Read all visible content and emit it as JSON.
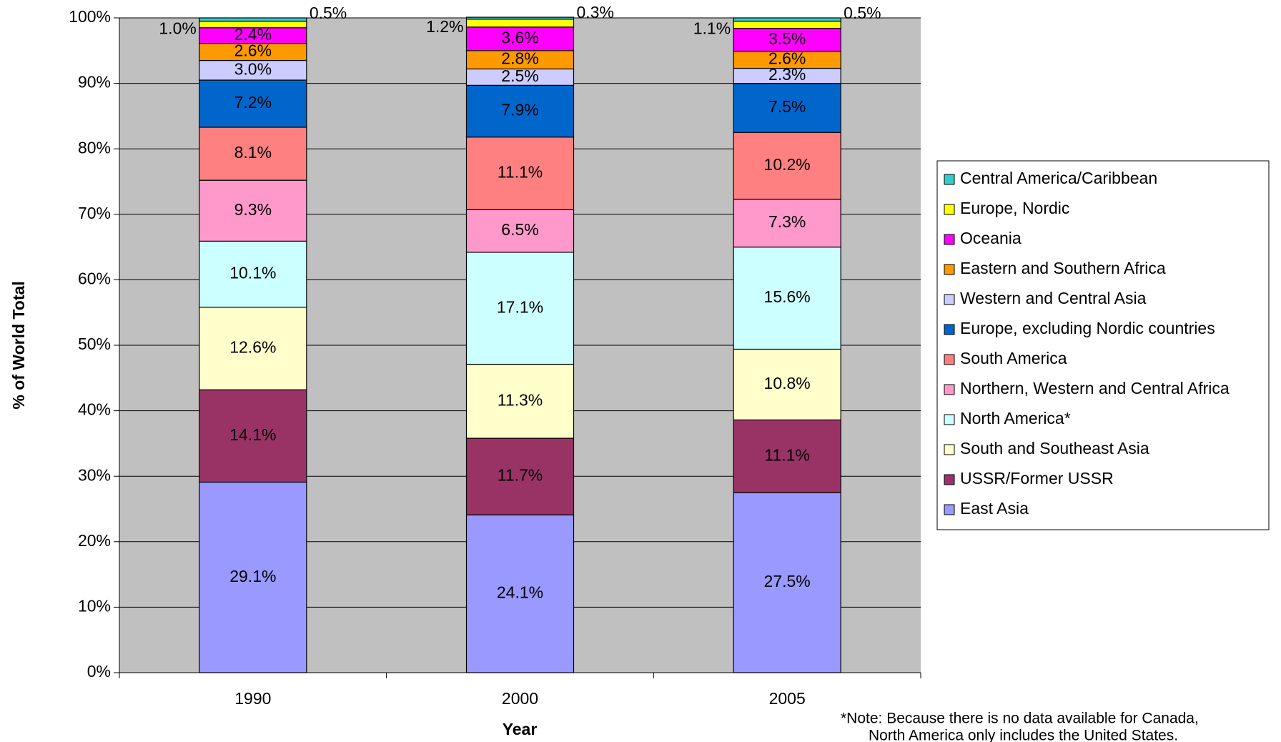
{
  "chart_data": {
    "type": "stacked_bar_100",
    "x_label": "Year",
    "y_label": "% of World Total",
    "note": "*Note:  Because there is no data available for Canada,",
    "note_line2": "North America only includes the United States.",
    "categories": [
      "1990",
      "2000",
      "2005"
    ],
    "ylim": [
      0,
      100
    ],
    "yticks": [
      {
        "value": 0,
        "label": "0%"
      },
      {
        "value": 10,
        "label": "10%"
      },
      {
        "value": 20,
        "label": "20%"
      },
      {
        "value": 30,
        "label": "30%"
      },
      {
        "value": 40,
        "label": "40%"
      },
      {
        "value": 50,
        "label": "50%"
      },
      {
        "value": 60,
        "label": "60%"
      },
      {
        "value": 70,
        "label": "70%"
      },
      {
        "value": 80,
        "label": "80%"
      },
      {
        "value": 90,
        "label": "90%"
      },
      {
        "value": 100,
        "label": "100%"
      }
    ],
    "grid": true,
    "legend_position": "right",
    "series": [
      {
        "name": "East Asia",
        "color": "#9999ff",
        "values": [
          29.1,
          24.1,
          27.5
        ],
        "value_labels": [
          "29.1%",
          "24.1%",
          "27.5%"
        ]
      },
      {
        "name": "USSR/Former USSR",
        "color": "#993366",
        "values": [
          14.1,
          11.7,
          11.1
        ],
        "value_labels": [
          "14.1%",
          "11.7%",
          "11.1%"
        ]
      },
      {
        "name": "South and Southeast Asia",
        "color": "#ffffcc",
        "values": [
          12.6,
          11.3,
          10.8
        ],
        "value_labels": [
          "12.6%",
          "11.3%",
          "10.8%"
        ]
      },
      {
        "name": "North America*",
        "color": "#ccffff",
        "values": [
          10.1,
          17.1,
          15.6
        ],
        "value_labels": [
          "10.1%",
          "17.1%",
          "15.6%"
        ]
      },
      {
        "name": "Northern, Western and Central Africa",
        "color": "#ff99cc",
        "values": [
          9.3,
          6.5,
          7.3
        ],
        "value_labels": [
          "9.3%",
          "6.5%",
          "7.3%"
        ]
      },
      {
        "name": "South America",
        "color": "#ff8080",
        "values": [
          8.1,
          11.1,
          10.2
        ],
        "value_labels": [
          "8.1%",
          "11.1%",
          "10.2%"
        ]
      },
      {
        "name": "Europe, excluding Nordic countries",
        "color": "#0066cc",
        "values": [
          7.2,
          7.9,
          7.5
        ],
        "value_labels": [
          "7.2%",
          "7.9%",
          "7.5%"
        ]
      },
      {
        "name": "Western and Central Asia",
        "color": "#ccccff",
        "values": [
          3.0,
          2.5,
          2.3
        ],
        "value_labels": [
          "3.0%",
          "2.5%",
          "2.3%"
        ]
      },
      {
        "name": "Eastern and Southern Africa",
        "color": "#ff9900",
        "values": [
          2.6,
          2.8,
          2.6
        ],
        "value_labels": [
          "2.6%",
          "2.8%",
          "2.6%"
        ]
      },
      {
        "name": "Oceania",
        "color": "#ff00ff",
        "values": [
          2.4,
          3.6,
          3.5
        ],
        "value_labels": [
          "2.4%",
          "3.6%",
          "3.5%"
        ]
      },
      {
        "name": "Europe, Nordic",
        "color": "#ffff00",
        "values": [
          1.0,
          1.2,
          1.1
        ],
        "value_labels": [
          "1.0%",
          "1.2%",
          "1.1%"
        ]
      },
      {
        "name": "Central America/Caribbean",
        "color": "#33cccc",
        "values": [
          0.5,
          0.3,
          0.5
        ],
        "value_labels": [
          "0.5%",
          "0.3%",
          "0.5%"
        ]
      }
    ]
  }
}
